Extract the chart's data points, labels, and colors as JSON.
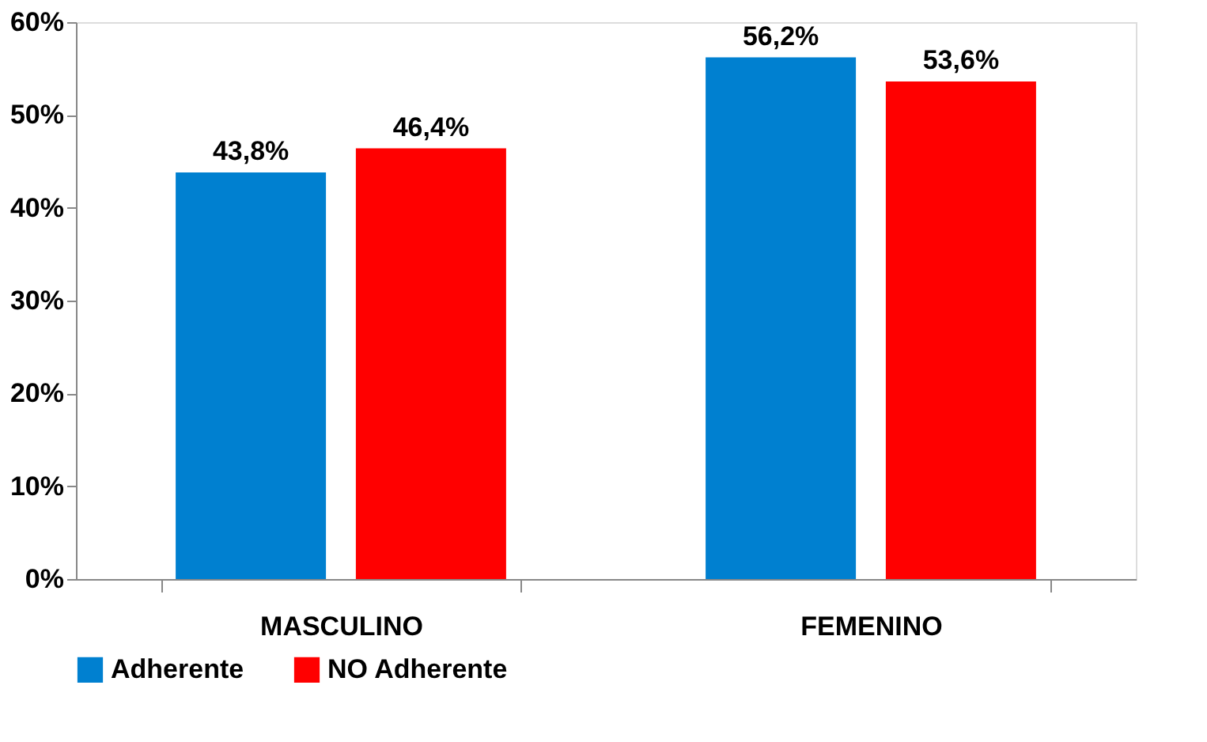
{
  "chart_data": {
    "type": "bar",
    "categories": [
      "MASCULINO",
      "FEMENINO"
    ],
    "series": [
      {
        "name": "Adherente",
        "color": "#0080d0",
        "values": [
          43.8,
          56.2
        ],
        "value_labels": [
          "43,8%",
          "56,2%"
        ]
      },
      {
        "name": "NO Adherente",
        "color": "#ff0000",
        "values": [
          46.4,
          53.6
        ],
        "value_labels": [
          "46,4%",
          "53,6%"
        ]
      }
    ],
    "ylim": [
      0,
      60
    ],
    "yticks": [
      {
        "value": 0,
        "label": "0%"
      },
      {
        "value": 10,
        "label": "10%"
      },
      {
        "value": 20,
        "label": "20%"
      },
      {
        "value": 30,
        "label": "30%"
      },
      {
        "value": 40,
        "label": "40%"
      },
      {
        "value": 50,
        "label": "50%"
      },
      {
        "value": 60,
        "label": "60%"
      }
    ],
    "grid": false,
    "legend": "bottom"
  }
}
